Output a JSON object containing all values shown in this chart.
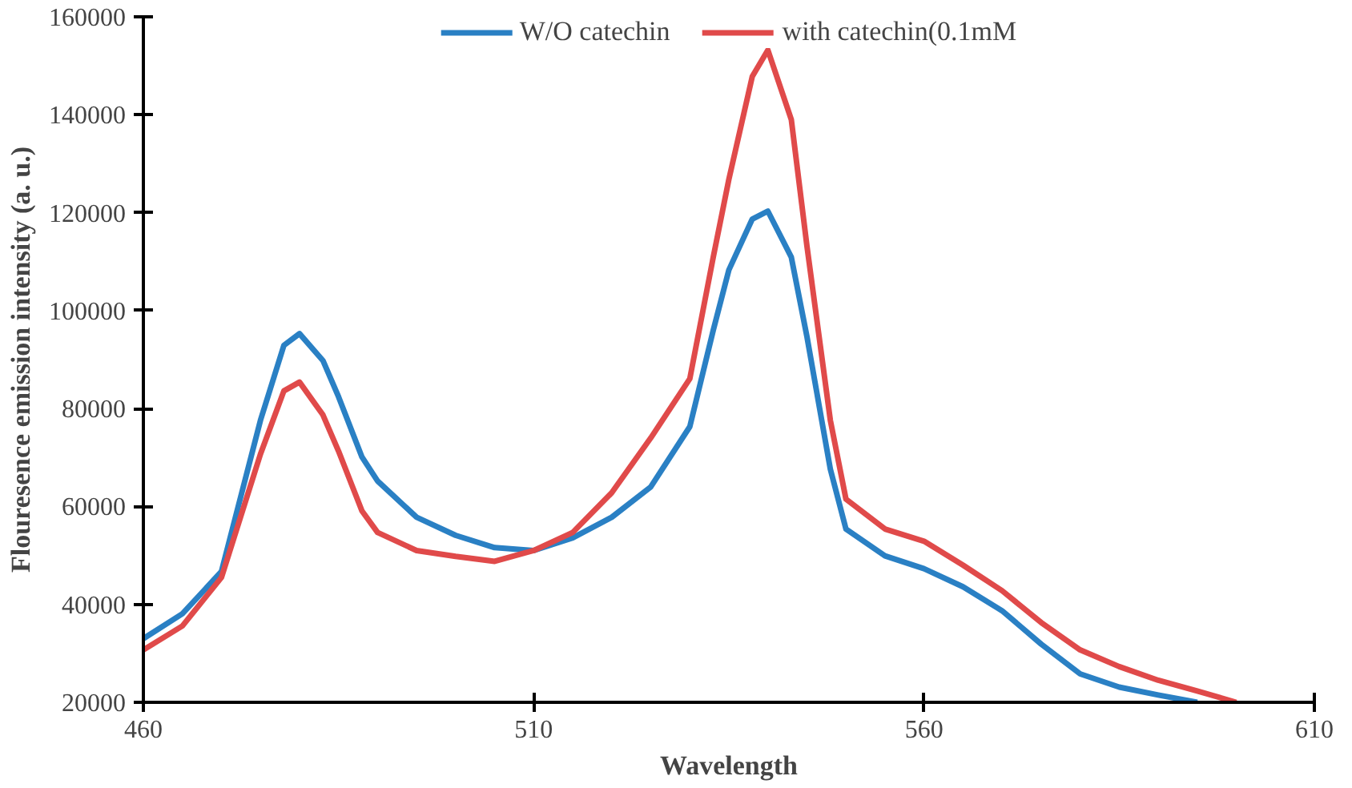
{
  "chart_data": {
    "type": "line",
    "xlabel": "Wavelength",
    "ylabel": "Flouresence emission intensity (a. u.)",
    "xlim": [
      460,
      610
    ],
    "xticks": [
      460,
      510,
      560,
      610
    ],
    "ylim": [
      20000,
      160000
    ],
    "yticks": [
      20000,
      40000,
      60000,
      80000,
      100000,
      120000,
      140000,
      160000
    ],
    "grid": false,
    "legend": "top",
    "marker": "none",
    "line_style": "solid",
    "series": [
      {
        "name": "W/O catechin",
        "color": "#2a80c4",
        "x": [
          460,
          465,
          470,
          475,
          478,
          480,
          483,
          485,
          488,
          490,
          495,
          500,
          505,
          510,
          515,
          520,
          525,
          530,
          533,
          535,
          538,
          540,
          543,
          545,
          548,
          550,
          555,
          560,
          565,
          570,
          575,
          580,
          585,
          590,
          595
        ],
        "values": [
          33000,
          38100,
          46700,
          77600,
          92900,
          95300,
          89800,
          82400,
          70100,
          65200,
          57800,
          54100,
          51600,
          51000,
          53600,
          57800,
          64000,
          76300,
          96000,
          108300,
          118700,
          120300,
          110900,
          94700,
          67600,
          55400,
          49900,
          47300,
          43600,
          38700,
          31900,
          25800,
          23100,
          21500,
          20000
        ]
      },
      {
        "name": "with catechin(0.1mM",
        "color": "#e04a4a",
        "x": [
          460,
          465,
          470,
          475,
          478,
          480,
          483,
          485,
          488,
          490,
          495,
          500,
          505,
          510,
          515,
          520,
          525,
          530,
          533,
          535,
          538,
          540,
          543,
          545,
          548,
          550,
          555,
          560,
          565,
          570,
          575,
          580,
          585,
          590,
          595,
          600
        ],
        "values": [
          30700,
          35600,
          45500,
          70700,
          83600,
          85400,
          78700,
          71300,
          59100,
          54700,
          51000,
          49800,
          48800,
          51000,
          54700,
          62800,
          74000,
          86100,
          110900,
          126800,
          147800,
          153200,
          139000,
          113200,
          77600,
          61500,
          55400,
          52900,
          48000,
          42800,
          36300,
          30700,
          27300,
          24500,
          22300,
          20000
        ]
      }
    ]
  }
}
